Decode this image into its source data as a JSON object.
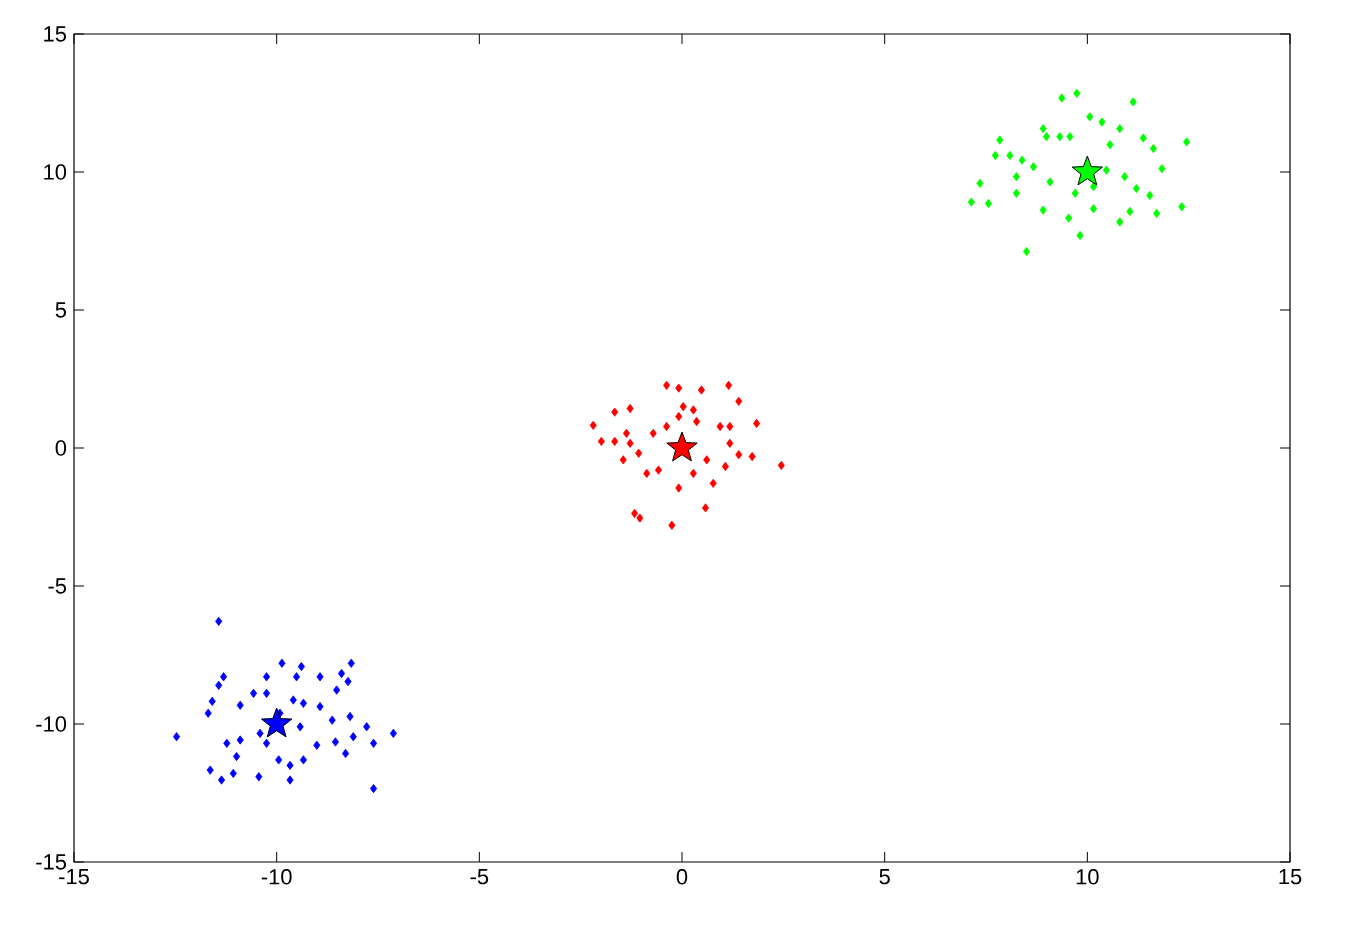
{
  "chart_data": {
    "type": "scatter",
    "marker": "diamond",
    "xlim": [
      -15,
      15
    ],
    "ylim": [
      -15,
      15
    ],
    "xticks": [
      -15,
      -10,
      -5,
      0,
      5,
      10,
      15
    ],
    "yticks": [
      -15,
      -10,
      -5,
      0,
      5,
      10,
      15
    ],
    "grid": false,
    "series": [
      {
        "color": "#0000ff",
        "x": [
          -11.43,
          -12.47,
          -7.12,
          -7.61,
          -11.64,
          -11.36,
          -11.07,
          -10.44,
          -9.67,
          -9.67,
          -9.95,
          -9.34,
          -9.01,
          -8.55,
          -8.3,
          -8.11,
          -7.78,
          -7.61,
          -8.19,
          -8.63,
          -8.93,
          -8.52,
          -8.24,
          -8.16,
          -8.4,
          -8.93,
          -9.39,
          -9.51,
          -9.87,
          -10.25,
          -11.31,
          -11.43,
          -11.59,
          -11.69,
          -10.9,
          -10.57,
          -10.25,
          -9.59,
          -9.34,
          -11.23,
          -10.9,
          -10.41,
          -10.25,
          -10.99,
          -9.92,
          -9.42
        ],
        "values": [
          -6.28,
          -10.46,
          -10.34,
          -12.34,
          -11.67,
          -12.03,
          -11.79,
          -11.91,
          -12.03,
          -11.5,
          -11.3,
          -11.3,
          -10.77,
          -10.65,
          -11.07,
          -10.46,
          -10.1,
          -10.7,
          -9.73,
          -9.86,
          -9.37,
          -8.77,
          -8.46,
          -7.8,
          -8.17,
          -8.29,
          -7.92,
          -8.29,
          -7.8,
          -8.29,
          -8.29,
          -8.6,
          -9.18,
          -9.61,
          -9.32,
          -8.89,
          -8.89,
          -9.13,
          -9.25,
          -10.7,
          -10.58,
          -10.34,
          -10.7,
          -11.18,
          -9.61,
          -10.1
        ]
      },
      {
        "color": "#ff0000",
        "x": [
          -0.38,
          -0.08,
          0.48,
          1.15,
          1.4,
          -2.19,
          -1.66,
          -1.28,
          -1.99,
          -1.66,
          -1.28,
          1.84,
          2.45,
          -1.04,
          -1.17,
          -0.25,
          0.58,
          -0.08,
          0.77,
          1.07,
          1.4,
          1.73,
          -1.45,
          -1.07,
          -0.71,
          -0.38,
          -0.08,
          0.28,
          0.36,
          0.94,
          1.18,
          -0.58,
          0.28,
          0.61,
          -0.87,
          0.03,
          1.18,
          -1.37
        ],
        "values": [
          2.27,
          2.17,
          2.1,
          2.27,
          1.69,
          0.82,
          1.3,
          1.43,
          0.24,
          0.24,
          0.17,
          0.89,
          -0.63,
          -2.54,
          -2.37,
          -2.8,
          -2.17,
          -1.45,
          -1.28,
          -0.67,
          -0.24,
          -0.31,
          -0.43,
          -0.19,
          0.53,
          0.78,
          1.14,
          1.38,
          0.96,
          0.78,
          0.17,
          -0.8,
          -0.92,
          -0.43,
          -0.92,
          1.5,
          0.78,
          0.53
        ]
      },
      {
        "color": "#00ff00",
        "x": [
          9.37,
          9.74,
          11.13,
          8.5,
          9.82,
          7.14,
          7.56,
          8.25,
          8.91,
          9.54,
          10.15,
          10.8,
          11.05,
          11.54,
          11.71,
          12.33,
          11.84,
          12.45,
          11.63,
          11.38,
          10.8,
          10.36,
          10.06,
          8.91,
          8.99,
          7.84,
          7.73,
          8.09,
          8.39,
          8.67,
          7.35,
          8.25,
          9.08,
          9.32,
          9.57,
          10.56,
          10.92,
          11.21,
          10.15,
          10.47,
          9.7
        ],
        "values": [
          12.68,
          12.85,
          12.54,
          7.12,
          7.7,
          8.91,
          8.86,
          9.23,
          8.62,
          8.33,
          8.67,
          8.19,
          8.57,
          9.15,
          8.5,
          8.74,
          10.12,
          11.09,
          10.85,
          11.23,
          11.57,
          11.81,
          12.0,
          11.57,
          11.28,
          11.16,
          10.6,
          10.6,
          10.43,
          10.19,
          9.59,
          9.83,
          9.64,
          11.28,
          11.28,
          10.99,
          9.83,
          9.4,
          9.47,
          10.07,
          9.23
        ]
      },
      {
        "color": "#0000ff",
        "marker": "star",
        "x": [
          -10
        ],
        "values": [
          -10
        ]
      },
      {
        "color": "#ff0000",
        "marker": "star",
        "x": [
          0
        ],
        "values": [
          0
        ]
      },
      {
        "color": "#00ff00",
        "marker": "star",
        "x": [
          10
        ],
        "values": [
          10
        ]
      }
    ]
  }
}
